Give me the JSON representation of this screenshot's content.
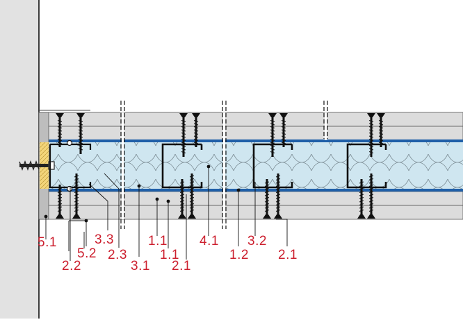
{
  "diagram": {
    "colors": {
      "wall": "#e2e2e2",
      "board": "#dcdcdc",
      "insulation": "#cfe6f0",
      "insulation_line": "#7a8a92",
      "vapor_layer": "#1f5fa8",
      "wood": "#f3d57a",
      "profile": "#111111",
      "label": "#cc1f2e"
    },
    "labels": {
      "l_5_1": "5.1",
      "l_2_2": "2.2",
      "l_5_2": "5.2",
      "l_3_3": "3.3",
      "l_2_3": "2.3",
      "l_3_1": "3.1",
      "l_1_1a": "1.1",
      "l_1_1b": "1.1",
      "l_2_1a": "2.1",
      "l_4_1": "4.1",
      "l_1_2": "1.2",
      "l_3_2": "3.2",
      "l_2_1b": "2.1"
    }
  }
}
